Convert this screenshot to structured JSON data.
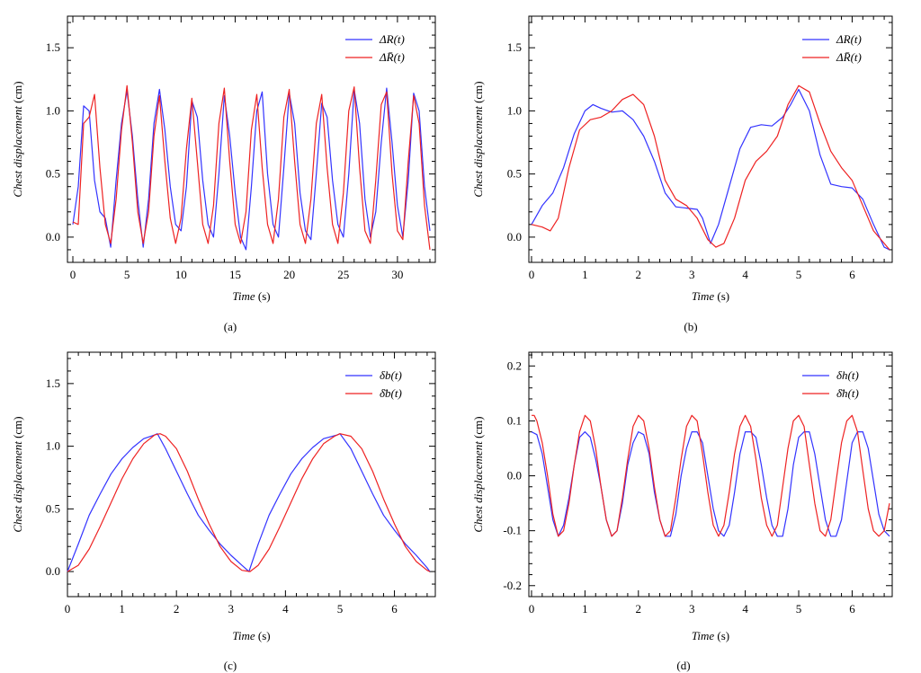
{
  "chart_data": [
    {
      "type": "line",
      "panel_label": "(a)",
      "xlabel_italic": "Time",
      "xlabel_unit": " (s)",
      "ylabel_italic": "Chest displacement",
      "ylabel_unit": " (cm)",
      "xlim": [
        -0.5,
        33.5
      ],
      "ylim": [
        -0.2,
        1.75
      ],
      "xticks": [
        0,
        5,
        10,
        15,
        20,
        25,
        30
      ],
      "xtick_labels": [
        "0",
        "5",
        "10",
        "15",
        "20",
        "25",
        "30"
      ],
      "yticks": [
        0.0,
        0.5,
        1.0,
        1.5
      ],
      "ytick_labels": [
        "0.0",
        "0.5",
        "1.0",
        "1.5"
      ],
      "legend_position": "top-right",
      "series": [
        {
          "name": "ΔR(t)",
          "color": "#3333ff",
          "x": [
            0,
            0.5,
            1,
            1.5,
            2,
            2.5,
            3,
            3.5,
            4,
            4.5,
            5,
            5.5,
            6,
            6.5,
            7,
            7.5,
            8,
            8.5,
            9,
            9.5,
            10,
            10.5,
            11,
            11.5,
            12,
            12.5,
            13,
            13.5,
            14,
            14.5,
            15,
            15.5,
            16,
            16.5,
            17,
            17.5,
            18,
            18.5,
            19,
            19.5,
            20,
            20.5,
            21,
            21.5,
            22,
            22.5,
            23,
            23.5,
            24,
            24.5,
            25,
            25.5,
            26,
            26.5,
            27,
            27.5,
            28,
            28.5,
            29,
            29.5,
            30,
            30.5,
            31,
            31.5,
            32,
            32.5,
            33
          ],
          "y": [
            0.1,
            0.4,
            1.04,
            1.0,
            0.45,
            0.2,
            0.15,
            -0.08,
            0.45,
            0.9,
            1.16,
            0.8,
            0.3,
            -0.08,
            0.3,
            0.9,
            1.17,
            0.85,
            0.4,
            0.1,
            0.05,
            0.4,
            1.08,
            0.95,
            0.45,
            0.1,
            0.0,
            0.5,
            1.12,
            0.8,
            0.35,
            0.0,
            -0.1,
            0.4,
            1.0,
            1.15,
            0.5,
            0.1,
            0.0,
            0.55,
            1.14,
            0.9,
            0.35,
            0.05,
            -0.02,
            0.5,
            1.06,
            0.95,
            0.45,
            0.1,
            0.0,
            0.5,
            1.17,
            0.9,
            0.3,
            0.0,
            0.2,
            0.75,
            1.18,
            0.75,
            0.25,
            0.0,
            0.45,
            1.14,
            1.0,
            0.4,
            0.05
          ]
        },
        {
          "name": "ΔR̄(t)",
          "color": "#ee2222",
          "x": [
            0,
            0.5,
            1,
            1.5,
            2,
            2.5,
            3,
            3.5,
            4,
            4.5,
            5,
            5.5,
            6,
            6.5,
            7,
            7.5,
            8,
            8.5,
            9,
            9.5,
            10,
            10.5,
            11,
            11.5,
            12,
            12.5,
            13,
            13.5,
            14,
            14.5,
            15,
            15.5,
            16,
            16.5,
            17,
            17.5,
            18,
            18.5,
            19,
            19.5,
            20,
            20.5,
            21,
            21.5,
            22,
            22.5,
            23,
            23.5,
            24,
            24.5,
            25,
            25.5,
            26,
            26.5,
            27,
            27.5,
            28,
            28.5,
            29,
            29.5,
            30,
            30.5,
            31,
            31.5,
            32,
            32.5,
            33
          ],
          "y": [
            0.12,
            0.1,
            0.9,
            0.95,
            1.13,
            0.55,
            0.1,
            -0.05,
            0.3,
            0.85,
            1.2,
            0.75,
            0.2,
            -0.05,
            0.2,
            0.8,
            1.12,
            0.6,
            0.15,
            -0.05,
            0.15,
            0.7,
            1.1,
            0.6,
            0.1,
            -0.05,
            0.25,
            0.9,
            1.18,
            0.6,
            0.1,
            -0.05,
            0.2,
            0.85,
            1.13,
            0.55,
            0.1,
            -0.05,
            0.3,
            0.95,
            1.17,
            0.6,
            0.1,
            -0.05,
            0.3,
            0.9,
            1.13,
            0.55,
            0.1,
            -0.05,
            0.35,
            1.0,
            1.19,
            0.55,
            0.05,
            -0.05,
            0.45,
            1.05,
            1.15,
            0.5,
            0.05,
            -0.02,
            0.6,
            1.12,
            0.9,
            0.25,
            -0.1
          ]
        }
      ]
    },
    {
      "type": "line",
      "panel_label": "(b)",
      "xlabel_italic": "Time",
      "xlabel_unit": " (s)",
      "ylabel_italic": "Chest displacement",
      "ylabel_unit": " (cm)",
      "xlim": [
        -0.05,
        6.75
      ],
      "ylim": [
        -0.2,
        1.75
      ],
      "xticks": [
        0,
        1,
        2,
        3,
        4,
        5,
        6
      ],
      "xtick_labels": [
        "0",
        "1",
        "2",
        "3",
        "4",
        "5",
        "6"
      ],
      "yticks": [
        0.0,
        0.5,
        1.0,
        1.5
      ],
      "ytick_labels": [
        "0.0",
        "0.5",
        "1.0",
        "1.5"
      ],
      "legend_position": "top-right",
      "series": [
        {
          "name": "ΔR(t)",
          "color": "#3333ff",
          "x": [
            0,
            0.2,
            0.4,
            0.6,
            0.8,
            1.0,
            1.15,
            1.3,
            1.5,
            1.7,
            1.9,
            2.1,
            2.3,
            2.5,
            2.7,
            2.9,
            3.1,
            3.2,
            3.35,
            3.5,
            3.7,
            3.9,
            4.1,
            4.3,
            4.5,
            4.7,
            4.85,
            5.0,
            5.2,
            5.4,
            5.6,
            5.8,
            6.0,
            6.2,
            6.4,
            6.6,
            6.7
          ],
          "y": [
            0.1,
            0.25,
            0.35,
            0.55,
            0.82,
            1.0,
            1.05,
            1.02,
            0.99,
            1.0,
            0.93,
            0.8,
            0.6,
            0.35,
            0.24,
            0.23,
            0.22,
            0.15,
            -0.05,
            0.1,
            0.4,
            0.7,
            0.87,
            0.89,
            0.88,
            0.95,
            1.05,
            1.17,
            1.0,
            0.65,
            0.42,
            0.4,
            0.39,
            0.3,
            0.1,
            -0.08,
            -0.1
          ]
        },
        {
          "name": "ΔR̄(t)",
          "color": "#ee2222",
          "x": [
            0,
            0.2,
            0.35,
            0.5,
            0.7,
            0.9,
            1.1,
            1.3,
            1.5,
            1.7,
            1.9,
            2.1,
            2.3,
            2.5,
            2.7,
            2.9,
            3.1,
            3.3,
            3.45,
            3.6,
            3.8,
            4.0,
            4.2,
            4.4,
            4.6,
            4.8,
            5.0,
            5.2,
            5.4,
            5.6,
            5.8,
            6.0,
            6.2,
            6.4,
            6.6,
            6.7
          ],
          "y": [
            0.1,
            0.08,
            0.05,
            0.15,
            0.55,
            0.85,
            0.93,
            0.95,
            1.0,
            1.09,
            1.13,
            1.05,
            0.8,
            0.45,
            0.3,
            0.25,
            0.15,
            -0.02,
            -0.08,
            -0.05,
            0.15,
            0.45,
            0.6,
            0.68,
            0.8,
            1.05,
            1.2,
            1.15,
            0.9,
            0.68,
            0.55,
            0.45,
            0.25,
            0.05,
            -0.05,
            -0.1
          ]
        }
      ]
    },
    {
      "type": "line",
      "panel_label": "(c)",
      "xlabel_italic": "Time",
      "xlabel_unit": " (s)",
      "ylabel_italic": "Chest displacement",
      "ylabel_unit": " (cm)",
      "xlim": [
        0,
        6.75
      ],
      "ylim": [
        -0.2,
        1.75
      ],
      "xticks": [
        0,
        1,
        2,
        3,
        4,
        5,
        6
      ],
      "xtick_labels": [
        "0",
        "1",
        "2",
        "3",
        "4",
        "5",
        "6"
      ],
      "yticks": [
        0.0,
        0.5,
        1.0,
        1.5
      ],
      "ytick_labels": [
        "0.0",
        "0.5",
        "1.0",
        "1.5"
      ],
      "legend_position": "top-right",
      "series": [
        {
          "name": "δb(t)",
          "color": "#3333ff",
          "x": [
            0,
            0.2,
            0.4,
            0.6,
            0.8,
            1.0,
            1.2,
            1.4,
            1.6,
            1.65,
            1.8,
            2.0,
            2.2,
            2.4,
            2.6,
            2.8,
            3.0,
            3.2,
            3.33,
            3.5,
            3.7,
            3.9,
            4.1,
            4.3,
            4.5,
            4.7,
            4.95,
            5.0,
            5.2,
            5.4,
            5.6,
            5.8,
            6.0,
            6.2,
            6.4,
            6.6,
            6.65
          ],
          "y": [
            0.0,
            0.22,
            0.45,
            0.62,
            0.78,
            0.9,
            0.99,
            1.06,
            1.09,
            1.1,
            0.98,
            0.8,
            0.62,
            0.45,
            0.33,
            0.22,
            0.13,
            0.05,
            0.0,
            0.22,
            0.45,
            0.62,
            0.78,
            0.9,
            0.99,
            1.06,
            1.09,
            1.1,
            0.98,
            0.8,
            0.62,
            0.45,
            0.33,
            0.22,
            0.13,
            0.03,
            0.0
          ]
        },
        {
          "name": "δ̄b(t)",
          "color": "#ee2222",
          "x": [
            0,
            0.2,
            0.4,
            0.6,
            0.8,
            1.0,
            1.2,
            1.4,
            1.6,
            1.7,
            1.8,
            2.0,
            2.2,
            2.4,
            2.6,
            2.8,
            3.0,
            3.2,
            3.35,
            3.5,
            3.7,
            3.9,
            4.1,
            4.3,
            4.5,
            4.7,
            4.9,
            5.0,
            5.2,
            5.4,
            5.6,
            5.8,
            6.0,
            6.2,
            6.4,
            6.6,
            6.65
          ],
          "y": [
            0.0,
            0.05,
            0.18,
            0.36,
            0.55,
            0.74,
            0.9,
            1.02,
            1.09,
            1.1,
            1.08,
            0.98,
            0.8,
            0.58,
            0.38,
            0.2,
            0.08,
            0.01,
            0.0,
            0.05,
            0.18,
            0.36,
            0.55,
            0.74,
            0.9,
            1.02,
            1.08,
            1.1,
            1.08,
            0.98,
            0.8,
            0.58,
            0.38,
            0.2,
            0.08,
            0.01,
            0.0
          ]
        }
      ]
    },
    {
      "type": "line",
      "panel_label": "(d)",
      "xlabel_italic": "Time",
      "xlabel_unit": " (s)",
      "ylabel_italic": "Chest displacement",
      "ylabel_unit": " (cm)",
      "xlim": [
        -0.05,
        6.75
      ],
      "ylim": [
        -0.22,
        0.225
      ],
      "xticks": [
        0,
        1,
        2,
        3,
        4,
        5,
        6
      ],
      "xtick_labels": [
        "0",
        "1",
        "2",
        "3",
        "4",
        "5",
        "6"
      ],
      "yticks": [
        -0.2,
        -0.1,
        0.0,
        0.1,
        0.2
      ],
      "ytick_labels": [
        "-0.2",
        "-0.1",
        "0.0",
        "0.1",
        "0.2"
      ],
      "legend_position": "top-right",
      "series": [
        {
          "name": "δh(t)",
          "color": "#3333ff",
          "x": [
            0,
            0.1,
            0.2,
            0.3,
            0.4,
            0.5,
            0.6,
            0.7,
            0.8,
            0.9,
            1.0,
            1.1,
            1.2,
            1.3,
            1.4,
            1.5,
            1.6,
            1.7,
            1.8,
            1.9,
            2.0,
            2.1,
            2.2,
            2.3,
            2.4,
            2.5,
            2.6,
            2.7,
            2.8,
            2.9,
            3.0,
            3.1,
            3.2,
            3.3,
            3.4,
            3.5,
            3.6,
            3.7,
            3.8,
            3.9,
            4.0,
            4.1,
            4.2,
            4.3,
            4.4,
            4.5,
            4.6,
            4.7,
            4.8,
            4.9,
            5.0,
            5.1,
            5.2,
            5.3,
            5.4,
            5.5,
            5.6,
            5.7,
            5.8,
            5.9,
            6.0,
            6.1,
            6.2,
            6.3,
            6.4,
            6.5,
            6.6,
            6.7
          ],
          "y": [
            0.08,
            0.075,
            0.04,
            -0.02,
            -0.08,
            -0.11,
            -0.09,
            -0.04,
            0.02,
            0.07,
            0.08,
            0.07,
            0.03,
            -0.02,
            -0.08,
            -0.11,
            -0.1,
            -0.05,
            0.02,
            0.06,
            0.08,
            0.075,
            0.04,
            -0.03,
            -0.08,
            -0.11,
            -0.11,
            -0.07,
            0.0,
            0.05,
            0.08,
            0.08,
            0.06,
            0.0,
            -0.06,
            -0.1,
            -0.11,
            -0.09,
            -0.03,
            0.04,
            0.08,
            0.08,
            0.07,
            0.02,
            -0.04,
            -0.09,
            -0.11,
            -0.11,
            -0.06,
            0.02,
            0.07,
            0.08,
            0.08,
            0.04,
            -0.02,
            -0.08,
            -0.11,
            -0.11,
            -0.08,
            -0.01,
            0.06,
            0.08,
            0.08,
            0.05,
            -0.01,
            -0.07,
            -0.1,
            -0.11
          ]
        },
        {
          "name": "δ̄h(t)",
          "color": "#ee2222",
          "x": [
            0,
            0.05,
            0.1,
            0.2,
            0.3,
            0.4,
            0.5,
            0.6,
            0.7,
            0.8,
            0.9,
            1.0,
            1.1,
            1.2,
            1.3,
            1.4,
            1.5,
            1.6,
            1.7,
            1.8,
            1.9,
            2.0,
            2.1,
            2.2,
            2.3,
            2.4,
            2.5,
            2.6,
            2.7,
            2.8,
            2.9,
            3.0,
            3.1,
            3.2,
            3.3,
            3.4,
            3.5,
            3.6,
            3.7,
            3.8,
            3.9,
            4.0,
            4.1,
            4.2,
            4.3,
            4.4,
            4.5,
            4.6,
            4.7,
            4.8,
            4.9,
            5.0,
            5.1,
            5.2,
            5.3,
            5.4,
            5.5,
            5.6,
            5.7,
            5.8,
            5.9,
            6.0,
            6.1,
            6.2,
            6.3,
            6.4,
            6.5,
            6.6,
            6.7
          ],
          "y": [
            0.11,
            0.11,
            0.1,
            0.06,
            0.0,
            -0.07,
            -0.11,
            -0.1,
            -0.05,
            0.02,
            0.08,
            0.11,
            0.1,
            0.05,
            -0.02,
            -0.08,
            -0.11,
            -0.1,
            -0.04,
            0.03,
            0.09,
            0.11,
            0.1,
            0.05,
            -0.02,
            -0.08,
            -0.11,
            -0.1,
            -0.04,
            0.03,
            0.09,
            0.11,
            0.1,
            0.04,
            -0.03,
            -0.09,
            -0.11,
            -0.09,
            -0.03,
            0.04,
            0.09,
            0.11,
            0.09,
            0.03,
            -0.04,
            -0.09,
            -0.11,
            -0.09,
            -0.02,
            0.05,
            0.1,
            0.11,
            0.09,
            0.02,
            -0.05,
            -0.1,
            -0.11,
            -0.08,
            -0.01,
            0.06,
            0.1,
            0.11,
            0.08,
            0.01,
            -0.06,
            -0.1,
            -0.11,
            -0.1,
            -0.05
          ]
        }
      ]
    }
  ]
}
